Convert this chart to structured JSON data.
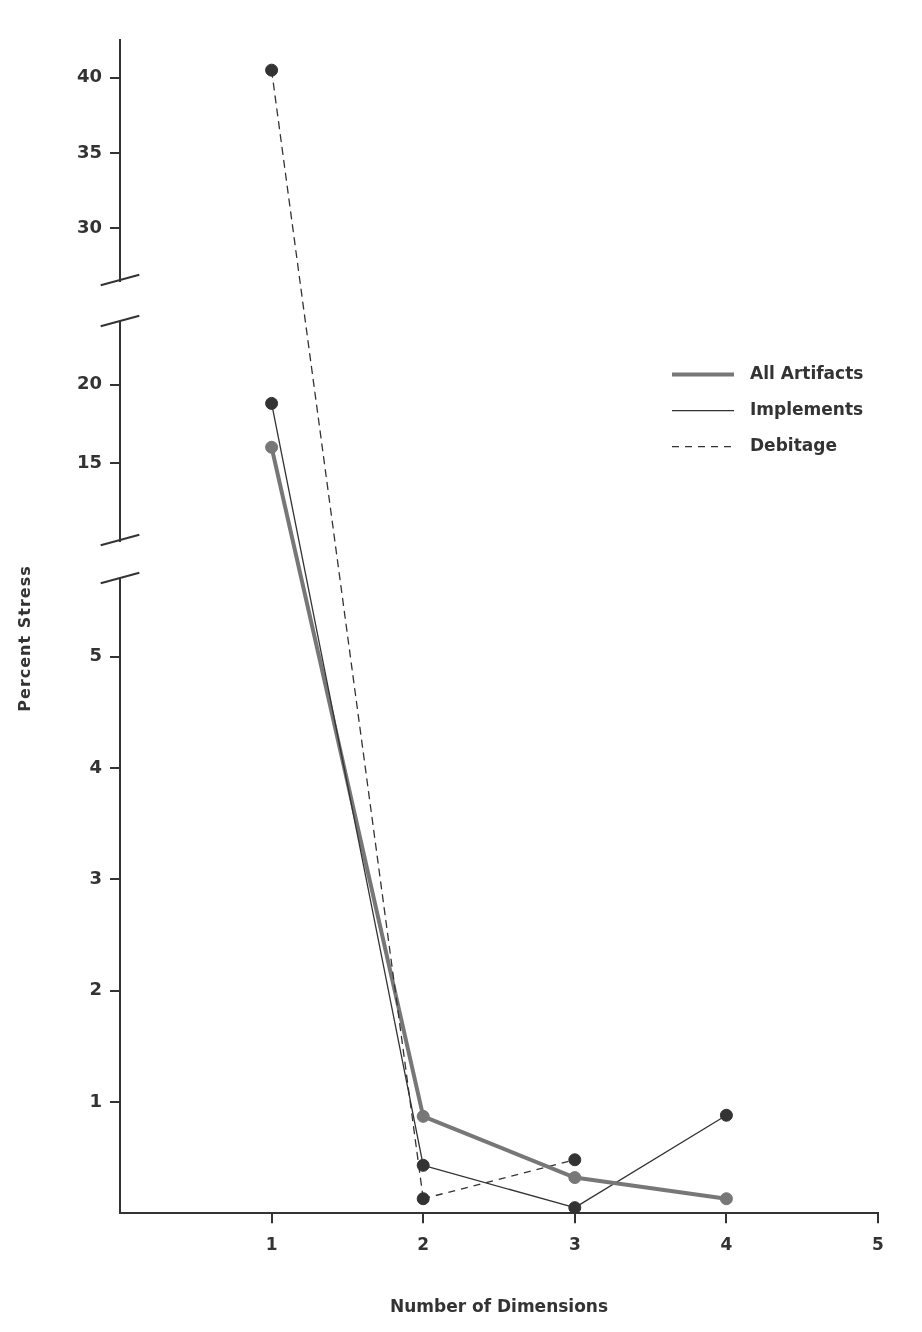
{
  "chart_data": [
    {
      "type": "line",
      "xlim": [
        0,
        5
      ],
      "ylim": [
        26.5,
        42.5
      ],
      "yticks": [
        30,
        35,
        40
      ],
      "tick_labels": "y",
      "marker": "circle",
      "grid": false,
      "series": [
        {
          "color": "#777777",
          "line_style": "solid"
        },
        {
          "color": "#333333",
          "line_style": "solid"
        },
        {
          "color": "#333333",
          "x": [
            1
          ],
          "values": [
            40.5
          ],
          "line_style": "dashed"
        }
      ]
    },
    {
      "type": "line",
      "xlim": [
        0,
        5
      ],
      "ylim": [
        10,
        24
      ],
      "yticks": [
        15,
        20
      ],
      "tick_labels": "y",
      "marker": "circle",
      "grid": false,
      "legend": "right",
      "series": [
        {
          "name": "All Artifacts",
          "color": "#777777",
          "x": [
            1
          ],
          "values": [
            16
          ],
          "line_style": "solid"
        },
        {
          "name": "Implements",
          "color": "#333333",
          "x": [
            1
          ],
          "values": [
            18.8
          ],
          "line_style": "solid"
        },
        {
          "name": "Debitage",
          "color": "#333333",
          "line_style": "dashed"
        }
      ]
    },
    {
      "type": "line",
      "xlabel": "Number of Dimensions",
      "ylabel": "Percent Stress",
      "xlim": [
        0,
        5
      ],
      "xticks": [
        1,
        2,
        3,
        4,
        5
      ],
      "ylim": [
        0,
        5.7
      ],
      "yticks": [
        1,
        2,
        3,
        4,
        5
      ],
      "marker": "circle",
      "grid": false,
      "series": [
        {
          "color": "#777777",
          "x": [
            2,
            3,
            4
          ],
          "values": [
            0.87,
            0.32,
            0.13
          ],
          "line_style": "solid"
        },
        {
          "color": "#333333",
          "x": [
            2,
            3,
            4
          ],
          "values": [
            0.43,
            0.05,
            0.88
          ],
          "line_style": "solid"
        },
        {
          "color": "#333333",
          "x": [
            2,
            3
          ],
          "values": [
            0.13,
            0.48
          ],
          "line_style": "dashed"
        }
      ]
    }
  ]
}
